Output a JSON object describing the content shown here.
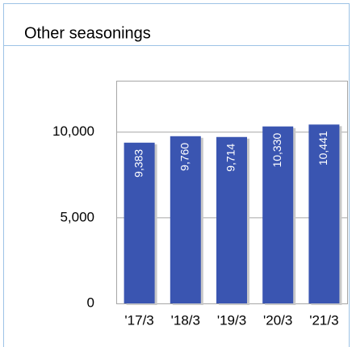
{
  "chart_data": {
    "type": "bar",
    "title": "Other seasonings",
    "categories": [
      "'17/3",
      "'18/3",
      "'19/3",
      "'20/3",
      "'21/3"
    ],
    "values": [
      9383,
      9760,
      9714,
      10330,
      10441
    ],
    "value_labels": [
      "9,383",
      "9,760",
      "9,714",
      "10,330",
      "10,441"
    ],
    "color": "#3a55b1",
    "ylim": [
      0,
      13000
    ],
    "yticks": [
      0,
      {
        "value": 5000,
        "label": "5,000"
      },
      {
        "value": 10000,
        "label": "10,000"
      }
    ],
    "grid": true
  }
}
